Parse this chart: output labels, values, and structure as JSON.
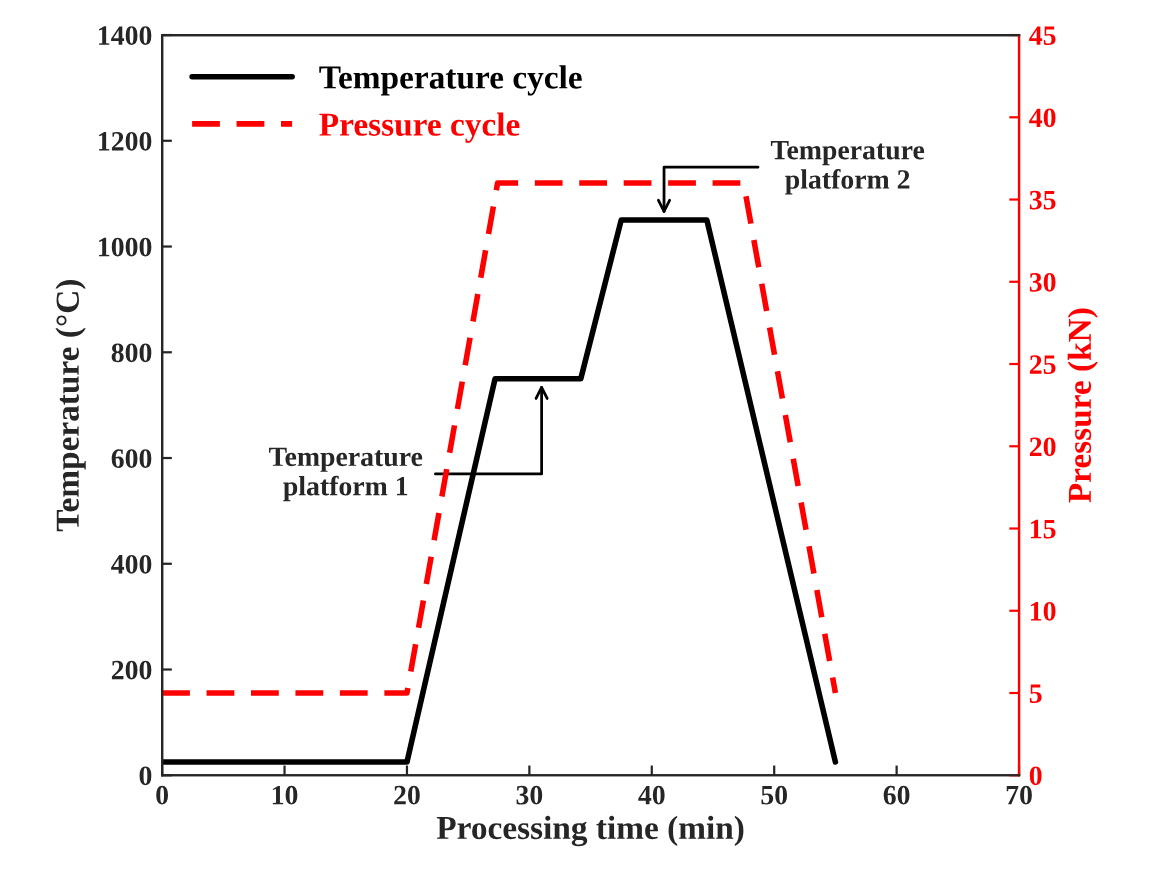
{
  "chart_data": {
    "type": "line",
    "xlabel": "Processing time (min)",
    "ylabel": "Temperature (°C)",
    "y2label": "Pressure (kN)",
    "xlim": [
      0,
      70
    ],
    "xticks": [
      0,
      10,
      20,
      30,
      40,
      50,
      60,
      70
    ],
    "ylim": [
      0,
      1400
    ],
    "yticks": [
      0,
      200,
      400,
      600,
      800,
      1000,
      1200,
      1400
    ],
    "y2lim": [
      0,
      45
    ],
    "y2ticks": [
      0,
      5,
      10,
      15,
      20,
      25,
      30,
      35,
      40,
      45
    ],
    "legend": "top left",
    "grid": false,
    "marker": "none",
    "series": [
      {
        "name": "Temperature cycle",
        "color": "#000000",
        "line_style": "solid",
        "x": [
          0,
          20,
          27.2,
          34.2,
          37.5,
          44.5,
          55
        ],
        "values": [
          25,
          25,
          750,
          750,
          1050,
          1050,
          25
        ]
      },
      {
        "name": "Pressure cycle",
        "color": "#ff0000",
        "line_style": "dashed",
        "axis": "y2",
        "x": [
          0,
          20,
          27.4,
          47.5,
          55
        ],
        "values": [
          5,
          5,
          36,
          36,
          5
        ]
      }
    ],
    "annotations": [
      {
        "text": "Temperature\nplatform 1",
        "x": 31,
        "y": 750
      },
      {
        "text": "Temperature\nplatform 2",
        "x": 41,
        "y": 1050
      }
    ]
  }
}
